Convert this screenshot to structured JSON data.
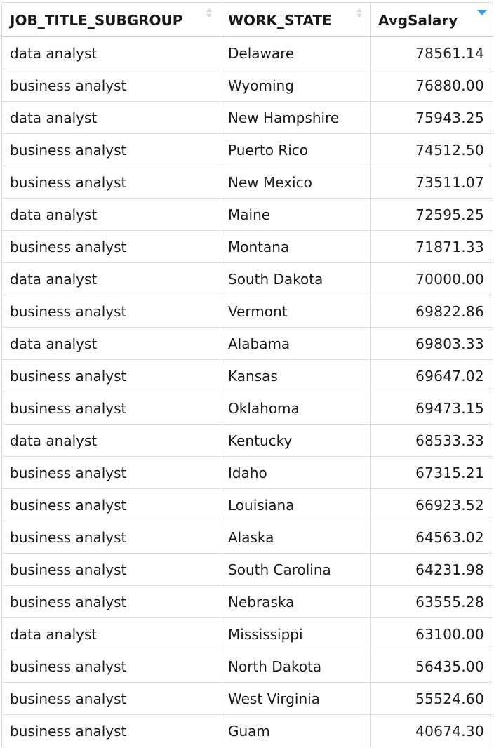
{
  "table": {
    "columns": [
      {
        "label": "JOB_TITLE_SUBGROUP",
        "sort": "none"
      },
      {
        "label": "WORK_STATE",
        "sort": "none"
      },
      {
        "label": "AvgSalary",
        "sort": "descending"
      }
    ],
    "sort_active_color": "#3aa0e8",
    "rows": [
      [
        "data analyst",
        "Delaware",
        "78561.14"
      ],
      [
        "business analyst",
        "Wyoming",
        "76880.00"
      ],
      [
        "data analyst",
        "New Hampshire",
        "75943.25"
      ],
      [
        "business analyst",
        "Puerto Rico",
        "74512.50"
      ],
      [
        "business analyst",
        "New Mexico",
        "73511.07"
      ],
      [
        "data analyst",
        "Maine",
        "72595.25"
      ],
      [
        "business analyst",
        "Montana",
        "71871.33"
      ],
      [
        "data analyst",
        "South Dakota",
        "70000.00"
      ],
      [
        "business analyst",
        "Vermont",
        "69822.86"
      ],
      [
        "data analyst",
        "Alabama",
        "69803.33"
      ],
      [
        "business analyst",
        "Kansas",
        "69647.02"
      ],
      [
        "business analyst",
        "Oklahoma",
        "69473.15"
      ],
      [
        "data analyst",
        "Kentucky",
        "68533.33"
      ],
      [
        "business analyst",
        "Idaho",
        "67315.21"
      ],
      [
        "business analyst",
        "Louisiana",
        "66923.52"
      ],
      [
        "business analyst",
        "Alaska",
        "64563.02"
      ],
      [
        "business analyst",
        "South Carolina",
        "64231.98"
      ],
      [
        "business analyst",
        "Nebraska",
        "63555.28"
      ],
      [
        "data analyst",
        "Mississippi",
        "63100.00"
      ],
      [
        "business analyst",
        "North Dakota",
        "56435.00"
      ],
      [
        "business analyst",
        "West Virginia",
        "55524.60"
      ],
      [
        "business analyst",
        "Guam",
        "40674.30"
      ]
    ]
  }
}
